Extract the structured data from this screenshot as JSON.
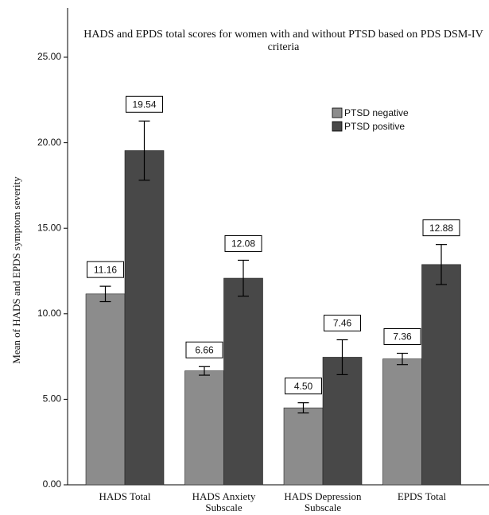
{
  "chart_data": {
    "type": "bar",
    "title": "HADS and EPDS total scores for women with and without PTSD based on PDS DSM-IV criteria",
    "y_label": "Mean of HADS and EPDS symptom severity",
    "categories": [
      "HADS Total",
      "HADS Anxiety Subscale",
      "HADS Depression Subscale",
      "EPDS Total"
    ],
    "series": [
      {
        "name": "PTSD negative",
        "color": "#8c8c8c",
        "values": [
          11.16,
          6.66,
          4.5,
          7.36
        ],
        "value_labels": [
          "11.16",
          "6.66",
          "4.50",
          "7.36"
        ],
        "errors": [
          0.45,
          0.25,
          0.3,
          0.33
        ]
      },
      {
        "name": "PTSD positive",
        "color": "#484848",
        "values": [
          19.54,
          12.08,
          7.46,
          12.88
        ],
        "value_labels": [
          "19.54",
          "12.08",
          "7.46",
          "12.88"
        ],
        "errors": [
          1.73,
          1.05,
          1.02,
          1.17
        ]
      }
    ],
    "ylim": [
      0,
      25
    ],
    "yticks": [
      {
        "value": 0,
        "label": "0.00"
      },
      {
        "value": 5,
        "label": "5.00"
      },
      {
        "value": 10,
        "label": "10.00"
      },
      {
        "value": 15,
        "label": "15.00"
      },
      {
        "value": 20,
        "label": "20.00"
      },
      {
        "value": 25,
        "label": "25.00"
      }
    ],
    "grid": false,
    "legend": "upper right"
  }
}
